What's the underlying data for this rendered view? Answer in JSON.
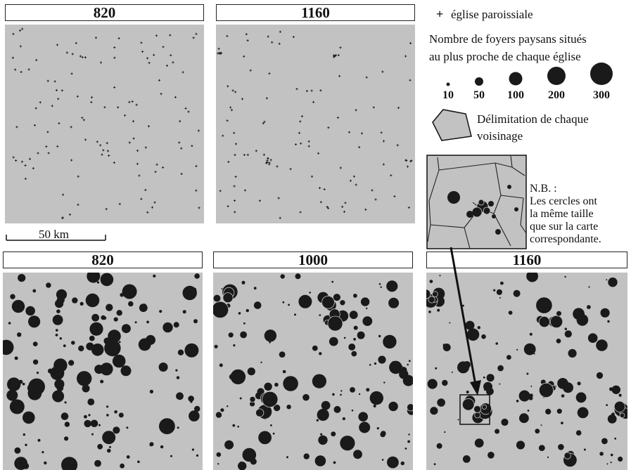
{
  "maps": [
    {
      "title": "820",
      "type": "churches"
    },
    {
      "title": "1160",
      "type": "churches"
    },
    {
      "title": "820",
      "type": "households"
    },
    {
      "title": "1000",
      "type": "households"
    },
    {
      "title": "1160",
      "type": "households"
    }
  ],
  "scale_bar": {
    "label": "50 km"
  },
  "legend": {
    "church_symbol": "+",
    "church_label": "église paroissiale",
    "circles_title_line1": "Nombre de foyers paysans situés",
    "circles_title_line2": "au plus proche de chaque église",
    "size_classes": [
      "10",
      "50",
      "100",
      "200",
      "300"
    ],
    "polygon_label_line1": "Délimitation de chaque",
    "polygon_label_line2": "voisinage"
  },
  "note": {
    "line1": "N.B. :",
    "line2": "Les cercles ont",
    "line3": "la même taille",
    "line4": "que sur la carte",
    "line5": "correspondante."
  },
  "colors": {
    "map_background": "#c2c2c2",
    "symbol": "#1a1a1a",
    "polygon_fill": "#c2c2c2"
  }
}
